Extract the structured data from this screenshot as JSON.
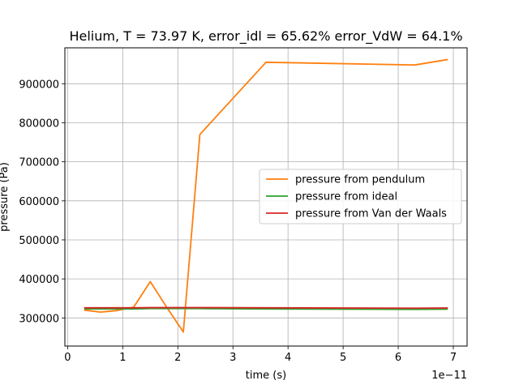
{
  "chart_data": {
    "type": "line",
    "title": "Helium, T = 73.97 K, error_idl = 65.62% error_VdW = 64.1%",
    "xlabel": "time (s)",
    "ylabel": "pressure (Pa)",
    "x_offset_label": "1e−11",
    "xlim": [
      -0.05,
      7.25
    ],
    "ylim": [
      228000,
      992000
    ],
    "xticks": [
      0,
      1,
      2,
      3,
      4,
      5,
      6,
      7
    ],
    "xtick_labels": [
      "0",
      "1",
      "2",
      "3",
      "4",
      "5",
      "6",
      "7"
    ],
    "yticks": [
      300000,
      400000,
      500000,
      600000,
      700000,
      800000,
      900000
    ],
    "ytick_labels": [
      "300000",
      "400000",
      "500000",
      "600000",
      "700000",
      "800000",
      "900000"
    ],
    "grid": true,
    "legend_position": "center-right",
    "series": [
      {
        "name": "pressure from pendulum",
        "color": "#ff7f0e",
        "x": [
          0.3,
          0.6,
          0.9,
          1.2,
          1.5,
          1.8,
          2.1,
          2.4,
          3.6,
          6.3,
          6.9
        ],
        "y": [
          320000,
          315000,
          319000,
          328000,
          393000,
          327000,
          264000,
          770000,
          955000,
          948000,
          962000
        ]
      },
      {
        "name": "pressure from ideal",
        "color": "#2ca02c",
        "x": [
          0.3,
          0.6,
          0.9,
          1.2,
          1.5,
          1.8,
          2.1,
          2.4,
          3.6,
          6.3,
          6.9
        ],
        "y": [
          323000,
          323000,
          323000,
          323000,
          324000,
          324000,
          324000,
          324000,
          323000,
          322000,
          322500
        ]
      },
      {
        "name": "pressure from Van der Waals",
        "color": "#d62728",
        "x": [
          0.3,
          0.6,
          0.9,
          1.2,
          1.5,
          1.8,
          2.1,
          2.4,
          3.6,
          6.3,
          6.9
        ],
        "y": [
          326000,
          326000,
          326000,
          326000,
          326500,
          326500,
          326500,
          326500,
          326000,
          325000,
          325500
        ]
      }
    ]
  }
}
